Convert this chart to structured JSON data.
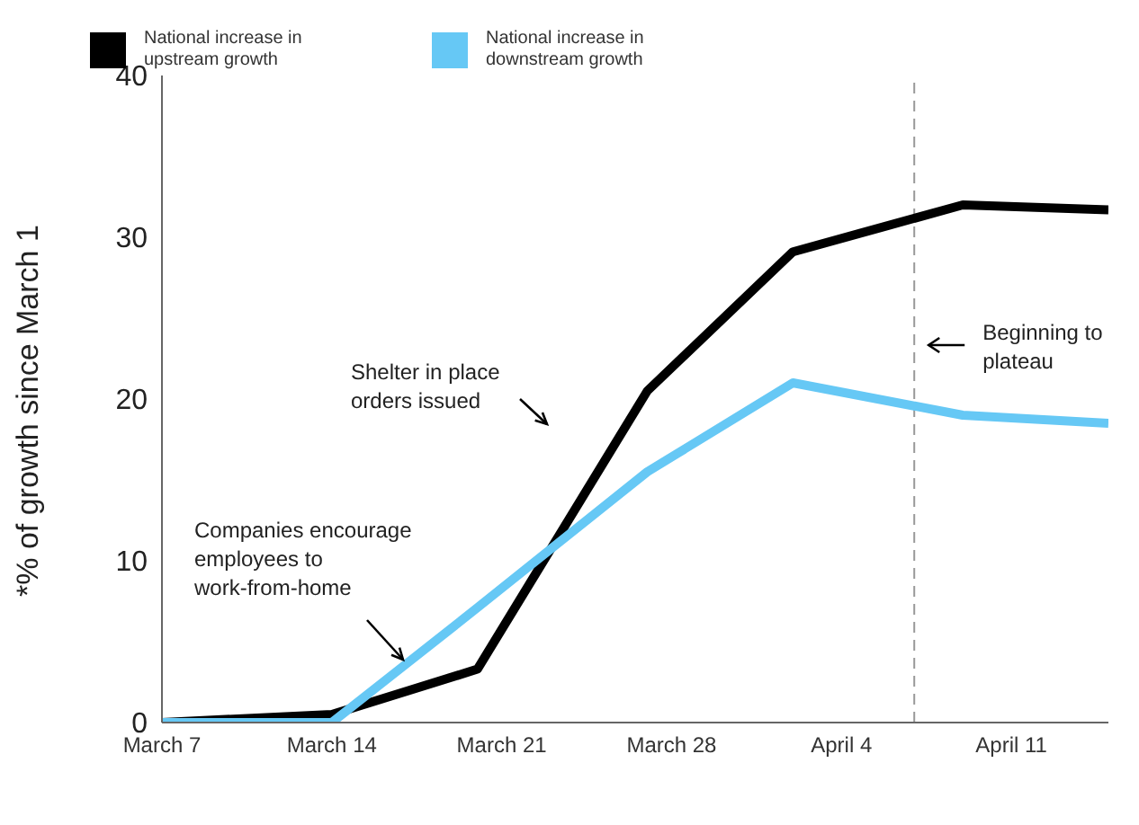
{
  "chart_data": {
    "type": "line",
    "ylabel": "*% of growth since March 1",
    "x": [
      "--03-07",
      "--03-14",
      "--03-20",
      "--03-27",
      "--04-02",
      "--04-09",
      "--04-15"
    ],
    "series": [
      {
        "name": "National increase in upstream growth",
        "color": "#000000",
        "values": [
          0,
          0.5,
          3.3,
          20.5,
          29.1,
          32,
          31.7
        ]
      },
      {
        "name": "National increase in downstream growth",
        "color": "#66c8f5",
        "values": [
          0,
          0,
          7.1,
          15.5,
          21,
          19,
          18.5
        ]
      }
    ],
    "xlim": [
      "--03-07",
      "--04-15"
    ],
    "xticks": [
      {
        "value": "--03-07",
        "label": "March 7"
      },
      {
        "value": "--03-14",
        "label": "March 14"
      },
      {
        "value": "--03-21",
        "label": "March 21"
      },
      {
        "value": "--03-28",
        "label": "March 28"
      },
      {
        "value": "--04-04",
        "label": "April 4"
      },
      {
        "value": "--04-11",
        "label": "April 11"
      }
    ],
    "ylim": [
      0,
      40
    ],
    "yticks": [
      0,
      10,
      20,
      30,
      40
    ],
    "ref_lines": [
      {
        "axis": "x",
        "value": "--04-07",
        "label": "Beginning to plateau",
        "color": "#999999",
        "line_style": "dashed"
      }
    ],
    "annotations": [
      "Companies encourage employees to work-from-home",
      "Shelter in place orders issued"
    ],
    "legend": "top",
    "grid": false,
    "line_style": "solid"
  }
}
